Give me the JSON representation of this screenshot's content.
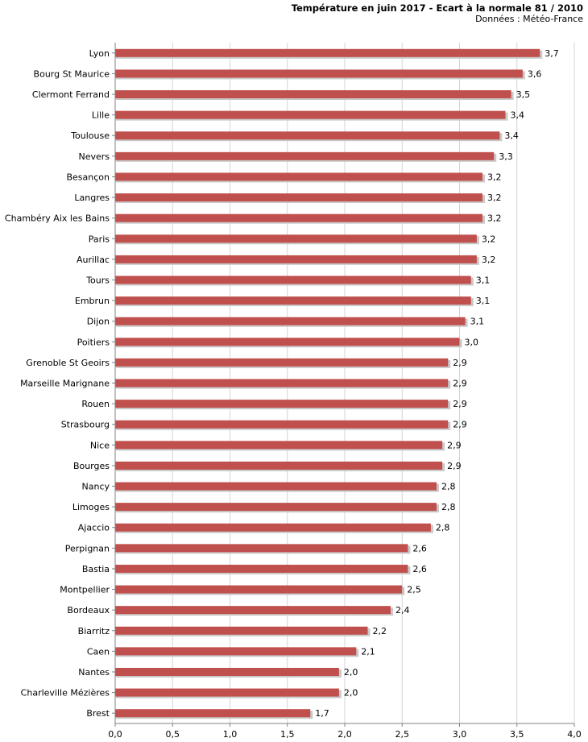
{
  "chart_data": {
    "type": "bar",
    "orientation": "horizontal",
    "title": "Température en juin 2017 - Ecart à la normale 81 / 2010",
    "subtitle": "Données : Météo-France",
    "categories": [
      "Lyon",
      "Bourg St Maurice",
      "Clermont Ferrand",
      "Lille",
      "Toulouse",
      "Nevers",
      "Besançon",
      "Langres",
      "Chambéry Aix les Bains",
      "Paris",
      "Aurillac",
      "Tours",
      "Embrun",
      "Dijon",
      "Poitiers",
      "Grenoble St Geoirs",
      "Marseille Marignane",
      "Rouen",
      "Strasbourg",
      "Nice",
      "Bourges",
      "Nancy",
      "Limoges",
      "Ajaccio",
      "Perpignan",
      "Bastia",
      "Montpellier",
      "Bordeaux",
      "Biarritz",
      "Caen",
      "Nantes",
      "Charleville Mézières",
      "Brest"
    ],
    "values": [
      3.7,
      3.55,
      3.45,
      3.4,
      3.35,
      3.3,
      3.2,
      3.2,
      3.2,
      3.15,
      3.15,
      3.1,
      3.1,
      3.05,
      3.0,
      2.9,
      2.9,
      2.9,
      2.9,
      2.85,
      2.85,
      2.8,
      2.8,
      2.75,
      2.55,
      2.55,
      2.5,
      2.4,
      2.2,
      2.1,
      1.95,
      1.95,
      1.7
    ],
    "value_labels": [
      "3,7",
      "3,6",
      "3,5",
      "3,4",
      "3,4",
      "3,3",
      "3,2",
      "3,2",
      "3,2",
      "3,2",
      "3,2",
      "3,1",
      "3,1",
      "3,1",
      "3,0",
      "2,9",
      "2,9",
      "2,9",
      "2,9",
      "2,9",
      "2,9",
      "2,8",
      "2,8",
      "2,8",
      "2,6",
      "2,6",
      "2,5",
      "2,4",
      "2,2",
      "2,1",
      "2,0",
      "2,0",
      "1,7"
    ],
    "xlim": [
      0,
      4
    ],
    "xticks": [
      "0,0",
      "0,5",
      "1,0",
      "1,5",
      "2,0",
      "2,5",
      "3,0",
      "3,5",
      "4,0"
    ],
    "xlabel": "",
    "ylabel": "",
    "grid": true,
    "legend": "none",
    "colors": {
      "bar": "#c0504d",
      "shadow": "#c9c9c9",
      "grid": "#d4d4d4",
      "axis": "#808080"
    }
  }
}
